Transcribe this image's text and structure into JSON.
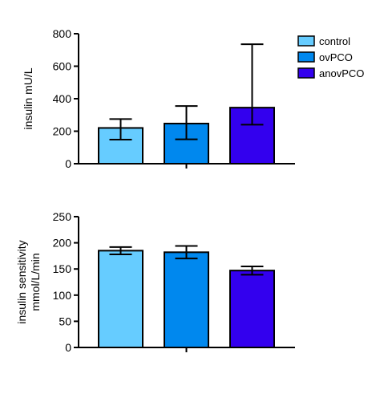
{
  "legend": {
    "position": "top-right",
    "items": [
      {
        "label": "control",
        "color": "#66ccff"
      },
      {
        "label": "ovPCO",
        "color": "#0088ee"
      },
      {
        "label": "anovPCO",
        "color": "#3300ee"
      }
    ]
  },
  "chart_data": [
    {
      "type": "bar",
      "ylabel": "insulin mU/L",
      "xlabel": "",
      "ylim": [
        0,
        800
      ],
      "yticks": [
        0,
        200,
        400,
        600,
        800
      ],
      "categories": [
        "control",
        "ovPCO",
        "anovPCO"
      ],
      "values": [
        220,
        247,
        345
      ],
      "error_low": [
        148,
        150,
        240
      ],
      "error_high": [
        275,
        355,
        735
      ],
      "grid": false
    },
    {
      "type": "bar",
      "ylabel": "insulin sensitivity mmol/L/min",
      "ylabel_lines": [
        "insulin sensitivity",
        "mmol/L/min"
      ],
      "xlabel": "",
      "ylim": [
        0,
        250
      ],
      "yticks": [
        0,
        50,
        100,
        150,
        200,
        250
      ],
      "categories": [
        "control",
        "ovPCO",
        "anovPCO"
      ],
      "values": [
        185,
        182,
        147
      ],
      "error_low": [
        178,
        170,
        139
      ],
      "error_high": [
        192,
        194,
        155
      ],
      "grid": false
    }
  ]
}
